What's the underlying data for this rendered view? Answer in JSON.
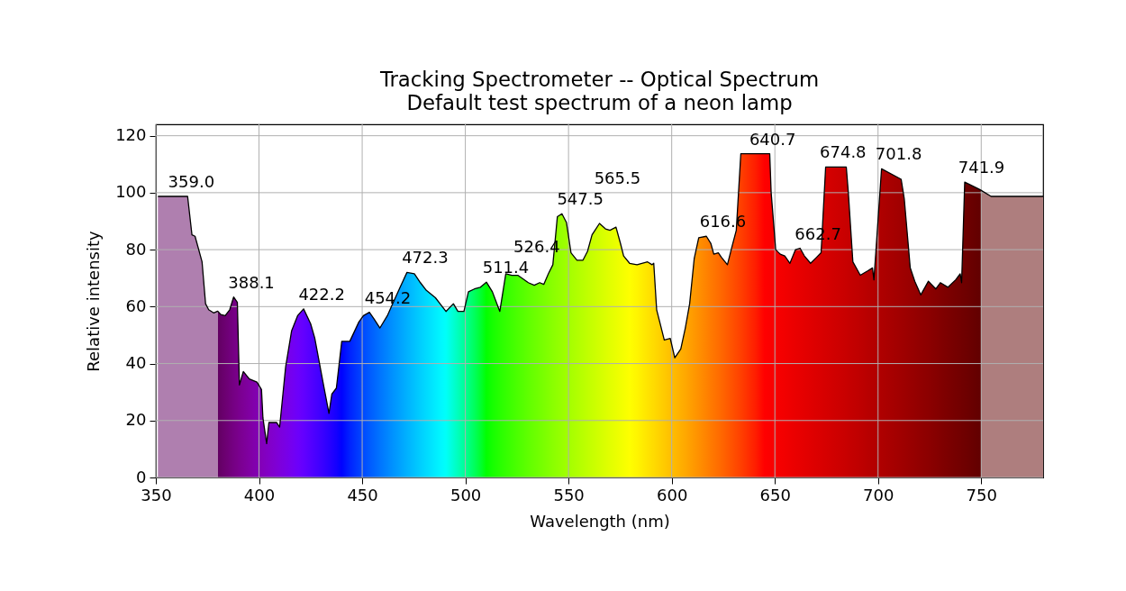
{
  "chart_data": {
    "type": "area",
    "title": "Tracking Spectrometer -- Optical Spectrum",
    "subtitle": "Default test spectrum of a neon lamp",
    "xlabel": "Wavelength (nm)",
    "ylabel": "Relative intensity",
    "xlim": [
      350,
      780
    ],
    "ylim": [
      0,
      124
    ],
    "xticks": [
      350,
      400,
      450,
      500,
      550,
      600,
      650,
      700,
      750
    ],
    "yticks": [
      0,
      20,
      40,
      60,
      80,
      100,
      120
    ],
    "grid": true,
    "series": [
      {
        "color": "#000000",
        "x": [
          351,
          359,
          365.4,
          367.5,
          369,
          372.4,
          374.1,
          375.6,
          378,
          380,
          380,
          381.5,
          383.6,
          385.8,
          387.7,
          389.5,
          390.5,
          392.4,
          395.3,
          399,
          401.2,
          401.9,
          403.7,
          404.8,
          408.5,
          410,
          412.9,
          415.8,
          418.7,
          421.6,
          425,
          427,
          428.8,
          431,
          433.9,
          435.3,
          437.5,
          440.1,
          444,
          448.4,
          450.6,
          453.5,
          455.7,
          458.6,
          462.2,
          464.4,
          468,
          471.7,
          475.3,
          478.2,
          481.1,
          485.5,
          488.4,
          490.6,
          494.2,
          496.4,
          499.3,
          501.5,
          504.4,
          507.3,
          510.2,
          513.1,
          516.7,
          519.6,
          522.5,
          525.4,
          527.6,
          530.5,
          533.4,
          536,
          538,
          540.2,
          542.4,
          544.6,
          546.8,
          549,
          551.2,
          554.1,
          557,
          559.2,
          561.4,
          565,
          567.9,
          570.1,
          573,
          575.2,
          576.7,
          579.6,
          583.2,
          588.3,
          590.5,
          591.3,
          592.7,
          594.2,
          596.4,
          599.3,
          601.5,
          604.4,
          606.6,
          608.7,
          610.9,
          613.1,
          616.8,
          619,
          620.4,
          622.6,
          624.1,
          627,
          629.2,
          631.3,
          633.5,
          640.7,
          645,
          647.5,
          648.2,
          650.4,
          652.6,
          654.8,
          657.3,
          660,
          662.2,
          664.3,
          667.3,
          670.2,
          672.4,
          674.6,
          684.6,
          685.6,
          687.8,
          691.4,
          695.1,
          697.3,
          698,
          701.7,
          711.2,
          712.7,
          715.6,
          717.8,
          720.7,
          724.4,
          728,
          730.2,
          733.9,
          737.6,
          739.8,
          740.5,
          742,
          749.3,
          750,
          750,
          754.8,
          780
        ],
        "values": [
          98.7,
          98.7,
          98.7,
          85.2,
          84.7,
          75.7,
          61,
          58.9,
          57.8,
          58.4,
          58.4,
          57.2,
          56.8,
          58.9,
          63.4,
          61.5,
          32.5,
          37.2,
          34.6,
          33.5,
          30.9,
          20.9,
          11.9,
          19.3,
          19.3,
          17.7,
          38.8,
          51.5,
          56.8,
          59.2,
          54,
          49,
          42,
          33.5,
          22.5,
          29.3,
          31.4,
          47.8,
          47.8,
          54.6,
          56.8,
          58,
          55.7,
          52.5,
          56.8,
          60.4,
          66.2,
          72,
          71.5,
          68.4,
          65.7,
          63.1,
          60.4,
          58.3,
          61,
          58.3,
          58.3,
          65.2,
          66.2,
          66.8,
          68.6,
          65.2,
          58.3,
          71.5,
          71,
          71,
          69.9,
          68.4,
          67.5,
          68.4,
          67.8,
          71.5,
          74.7,
          91.6,
          92.6,
          89.5,
          78.9,
          76.3,
          76.3,
          79.4,
          85.2,
          89.2,
          87.3,
          86.8,
          87.9,
          82.1,
          77.8,
          75.2,
          74.7,
          75.7,
          74.7,
          75.2,
          58.9,
          54.6,
          48.3,
          48.8,
          42,
          45.1,
          52.5,
          61,
          76.8,
          84.2,
          84.7,
          82.1,
          78.4,
          78.9,
          77.3,
          74.7,
          81,
          86.8,
          113.7,
          113.7,
          113.7,
          113.7,
          100,
          80,
          78.4,
          77.8,
          75.2,
          80,
          80.5,
          77.8,
          75.2,
          77.3,
          78.9,
          109,
          109,
          100,
          75.7,
          71,
          72.6,
          73.6,
          69.4,
          108.4,
          104.7,
          97.9,
          73.6,
          68.9,
          64.1,
          68.9,
          66.2,
          68.4,
          66.8,
          69.4,
          71.5,
          68.4,
          103.7,
          101.1,
          100.8,
          100.8,
          98.7,
          98.7
        ],
        "colors": [
          "#af7faf",
          "#af7faf",
          "#af7faf",
          "#af7faf",
          "#af7faf",
          "#af7faf",
          "#af7faf",
          "#af7faf",
          "#af7faf",
          "#af7faf",
          "#610061",
          "#660068",
          "#6c0071",
          "#71007b",
          "#750083",
          "#79008a",
          "#7a008f",
          "#7d0096",
          "#8000a2",
          "#8200b1",
          "#8300b9",
          "#8300bc",
          "#8200c3",
          "#8200c7",
          "#7f00d5",
          "#7d00db",
          "#7900e5",
          "#7400f0",
          "#6d00fa",
          "#6300ff",
          "#5400ff",
          "#4b00ff",
          "#4300ff",
          "#3800ff",
          "#2900ff",
          "#2100ff",
          "#1400ff",
          "#0002ff",
          "#0022ff",
          "#003dff",
          "#004aff",
          "#005aff",
          "#0065ff",
          "#0074ff",
          "#0085ff",
          "#0090ff",
          "#00a0ff",
          "#00b1ff",
          "#00c1ff",
          "#00ceff",
          "#00daff",
          "#00ecff",
          "#00f8ff",
          "#00fff9",
          "#00ffd3",
          "#00ffbb",
          "#00ff9b",
          "#00ff81",
          "#00ff5c",
          "#00ff33",
          "#02ff00",
          "#15ff00",
          "#27ff00",
          "#34ff00",
          "#40ff00",
          "#4cff00",
          "#54ff00",
          "#60ff00",
          "#6aff00",
          "#73ff00",
          "#7aff00",
          "#82ff00",
          "#8aff00",
          "#91ff00",
          "#98ff00",
          "#a0ff00",
          "#a7ff00",
          "#b0ff00",
          "#b9ff00",
          "#c0ff00",
          "#c7ff00",
          "#d2ff00",
          "#dbff00",
          "#e2ff00",
          "#eaff00",
          "#f1ff00",
          "#f5ff00",
          "#feff00",
          "#fff500",
          "#ffe400",
          "#ffdd00",
          "#ffdb00",
          "#ffd600",
          "#ffd100",
          "#ffca00",
          "#ffc000",
          "#ffb900",
          "#ffaf00",
          "#ffa800",
          "#ffa000",
          "#ff9800",
          "#ff9000",
          "#ff8300",
          "#ff7a00",
          "#ff7500",
          "#ff6d00",
          "#ff6700",
          "#ff5b00",
          "#ff5200",
          "#ff4900",
          "#ff4000",
          "#ff1d00",
          "#ff0000",
          "#fc0000",
          "#fb0000",
          "#f80000",
          "#f50000",
          "#f20000",
          "#ee0000",
          "#ea0000",
          "#e70000",
          "#e40000",
          "#e00000",
          "#dc0000",
          "#d90000",
          "#d60000",
          "#c80000",
          "#c60000",
          "#c30000",
          "#be0000",
          "#b80000",
          "#b50000",
          "#b40000",
          "#ae0000",
          "#a00000",
          "#9e0000",
          "#990000",
          "#960000",
          "#910000",
          "#8c0000",
          "#860000",
          "#820000",
          "#7c0000",
          "#760000",
          "#730000",
          "#710000",
          "#6f0000",
          "#630000",
          "#610000",
          "#ae7e7e",
          "#ae7e7e",
          "#ae7e7e"
        ]
      }
    ],
    "annotations": [
      {
        "text": "359.0",
        "x": 359.0,
        "y": 98.7
      },
      {
        "text": "388.1",
        "x": 388.1,
        "y": 63.4
      },
      {
        "text": "422.2",
        "x": 422.2,
        "y": 59.2
      },
      {
        "text": "454.2",
        "x": 454.2,
        "y": 58
      },
      {
        "text": "472.3",
        "x": 472.3,
        "y": 72
      },
      {
        "text": "511.4",
        "x": 511.4,
        "y": 68.6
      },
      {
        "text": "526.4",
        "x": 526.4,
        "y": 71
      },
      {
        "text": "547.5",
        "x": 547.5,
        "y": 92.6
      },
      {
        "text": "565.5",
        "x": 565.5,
        "y": 89.2
      },
      {
        "text": "616.6",
        "x": 616.6,
        "y": 84.7
      },
      {
        "text": "640.7",
        "x": 640.7,
        "y": 113.7
      },
      {
        "text": "662.7",
        "x": 662.7,
        "y": 80.5
      },
      {
        "text": "674.8",
        "x": 674.8,
        "y": 109
      },
      {
        "text": "701.8",
        "x": 701.8,
        "y": 108.4
      },
      {
        "text": "741.9",
        "x": 741.9,
        "y": 103.7
      }
    ]
  }
}
